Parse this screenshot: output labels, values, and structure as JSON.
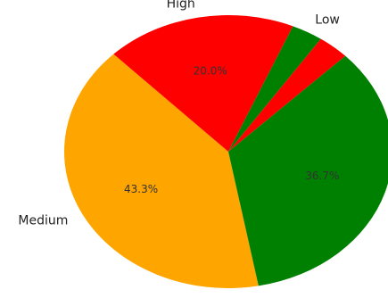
{
  "chart_data": {
    "type": "pie",
    "slices": [
      {
        "label": "Medium",
        "value": 43.3,
        "pct_text": "43.3%",
        "color": "#ffa500"
      },
      {
        "label": "High",
        "value": 20.0,
        "pct_text": "20.0%",
        "color": "#ff0000"
      },
      {
        "label": "Low",
        "value": 3.3,
        "pct_text": "",
        "color": "#008000"
      },
      {
        "label": "",
        "value": 3.3,
        "pct_text": "",
        "color": "#ff0000"
      },
      {
        "label": "Low",
        "value": 36.7,
        "pct_text": "36.7%",
        "color": "#008000"
      }
    ]
  }
}
